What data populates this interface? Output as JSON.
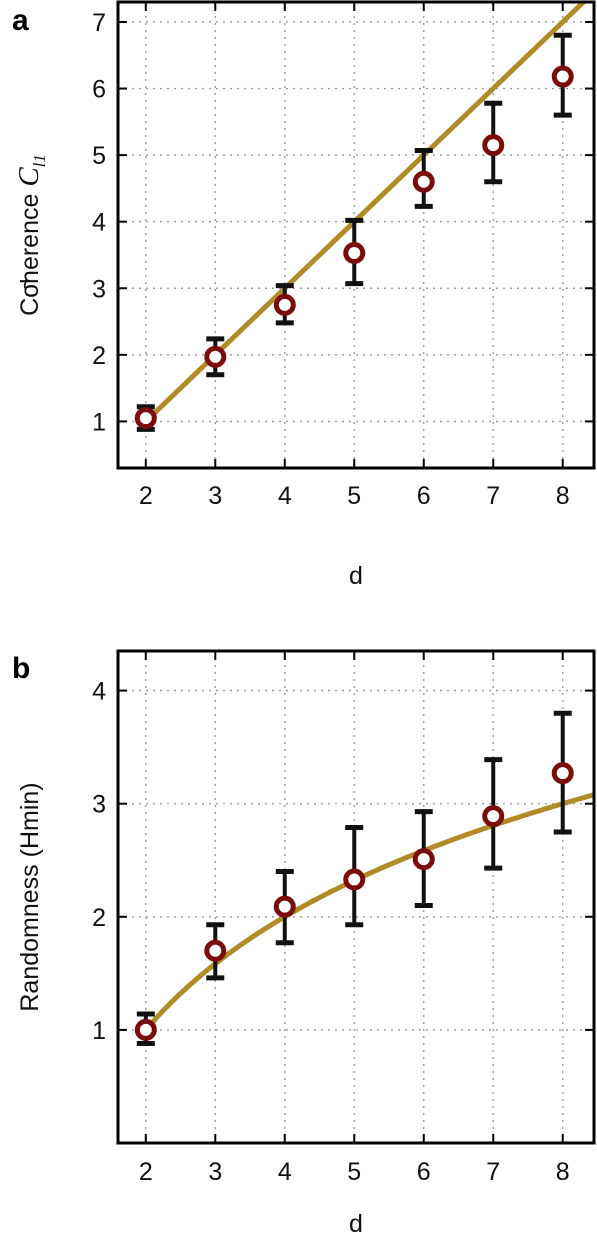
{
  "chart_data": [
    {
      "type": "scatter",
      "panel_label": "a",
      "xlabel": "d",
      "ylabel": {
        "text": "Coherence",
        "symbol": "C",
        "accent": "~",
        "subscript": "l1"
      },
      "xlim": [
        1.6,
        8.45
      ],
      "ylim": [
        0.3,
        7.3
      ],
      "xticks": [
        2,
        3,
        4,
        5,
        6,
        7,
        8
      ],
      "yticks": [
        1,
        2,
        3,
        4,
        5,
        6,
        7
      ],
      "grid": true,
      "legend": "none",
      "series": [
        {
          "kind": "points_with_error_bars",
          "x": [
            2,
            3,
            4,
            5,
            6,
            7,
            8
          ],
          "y": [
            1.05,
            1.97,
            2.75,
            3.53,
            4.6,
            5.15,
            6.18
          ],
          "err_low": [
            0.88,
            1.7,
            2.48,
            3.07,
            4.23,
            4.6,
            5.6
          ],
          "err_high": [
            1.22,
            2.24,
            3.04,
            4.02,
            5.07,
            5.78,
            6.8
          ],
          "color": "#7a0c0c"
        },
        {
          "kind": "line",
          "x": [
            2,
            3,
            4,
            5,
            6,
            7,
            8,
            8.45
          ],
          "y": [
            1.0,
            2.0,
            3.0,
            4.0,
            5.0,
            6.0,
            7.0,
            7.45
          ],
          "color": "#b08b26"
        }
      ]
    },
    {
      "type": "scatter",
      "panel_label": "b",
      "xlabel": "d",
      "ylabel": "Randomness (Hmin)",
      "xlim": [
        1.6,
        8.45
      ],
      "ylim": [
        0.0,
        4.35
      ],
      "xticks": [
        2,
        3,
        4,
        5,
        6,
        7,
        8
      ],
      "yticks": [
        1,
        2,
        3,
        4
      ],
      "grid": true,
      "legend": "none",
      "series": [
        {
          "kind": "points_with_error_bars",
          "x": [
            2,
            3,
            4,
            5,
            6,
            7,
            8
          ],
          "y": [
            1.0,
            1.7,
            2.09,
            2.33,
            2.51,
            2.89,
            3.27
          ],
          "err_low": [
            0.88,
            1.46,
            1.77,
            1.93,
            2.1,
            2.43,
            2.75
          ],
          "err_high": [
            1.14,
            1.93,
            2.4,
            2.79,
            2.93,
            3.39,
            3.8
          ],
          "color": "#7a0c0c"
        },
        {
          "kind": "curve",
          "function": "log2",
          "x_range": [
            2,
            8.45
          ],
          "color": "#b08b26"
        }
      ]
    }
  ]
}
